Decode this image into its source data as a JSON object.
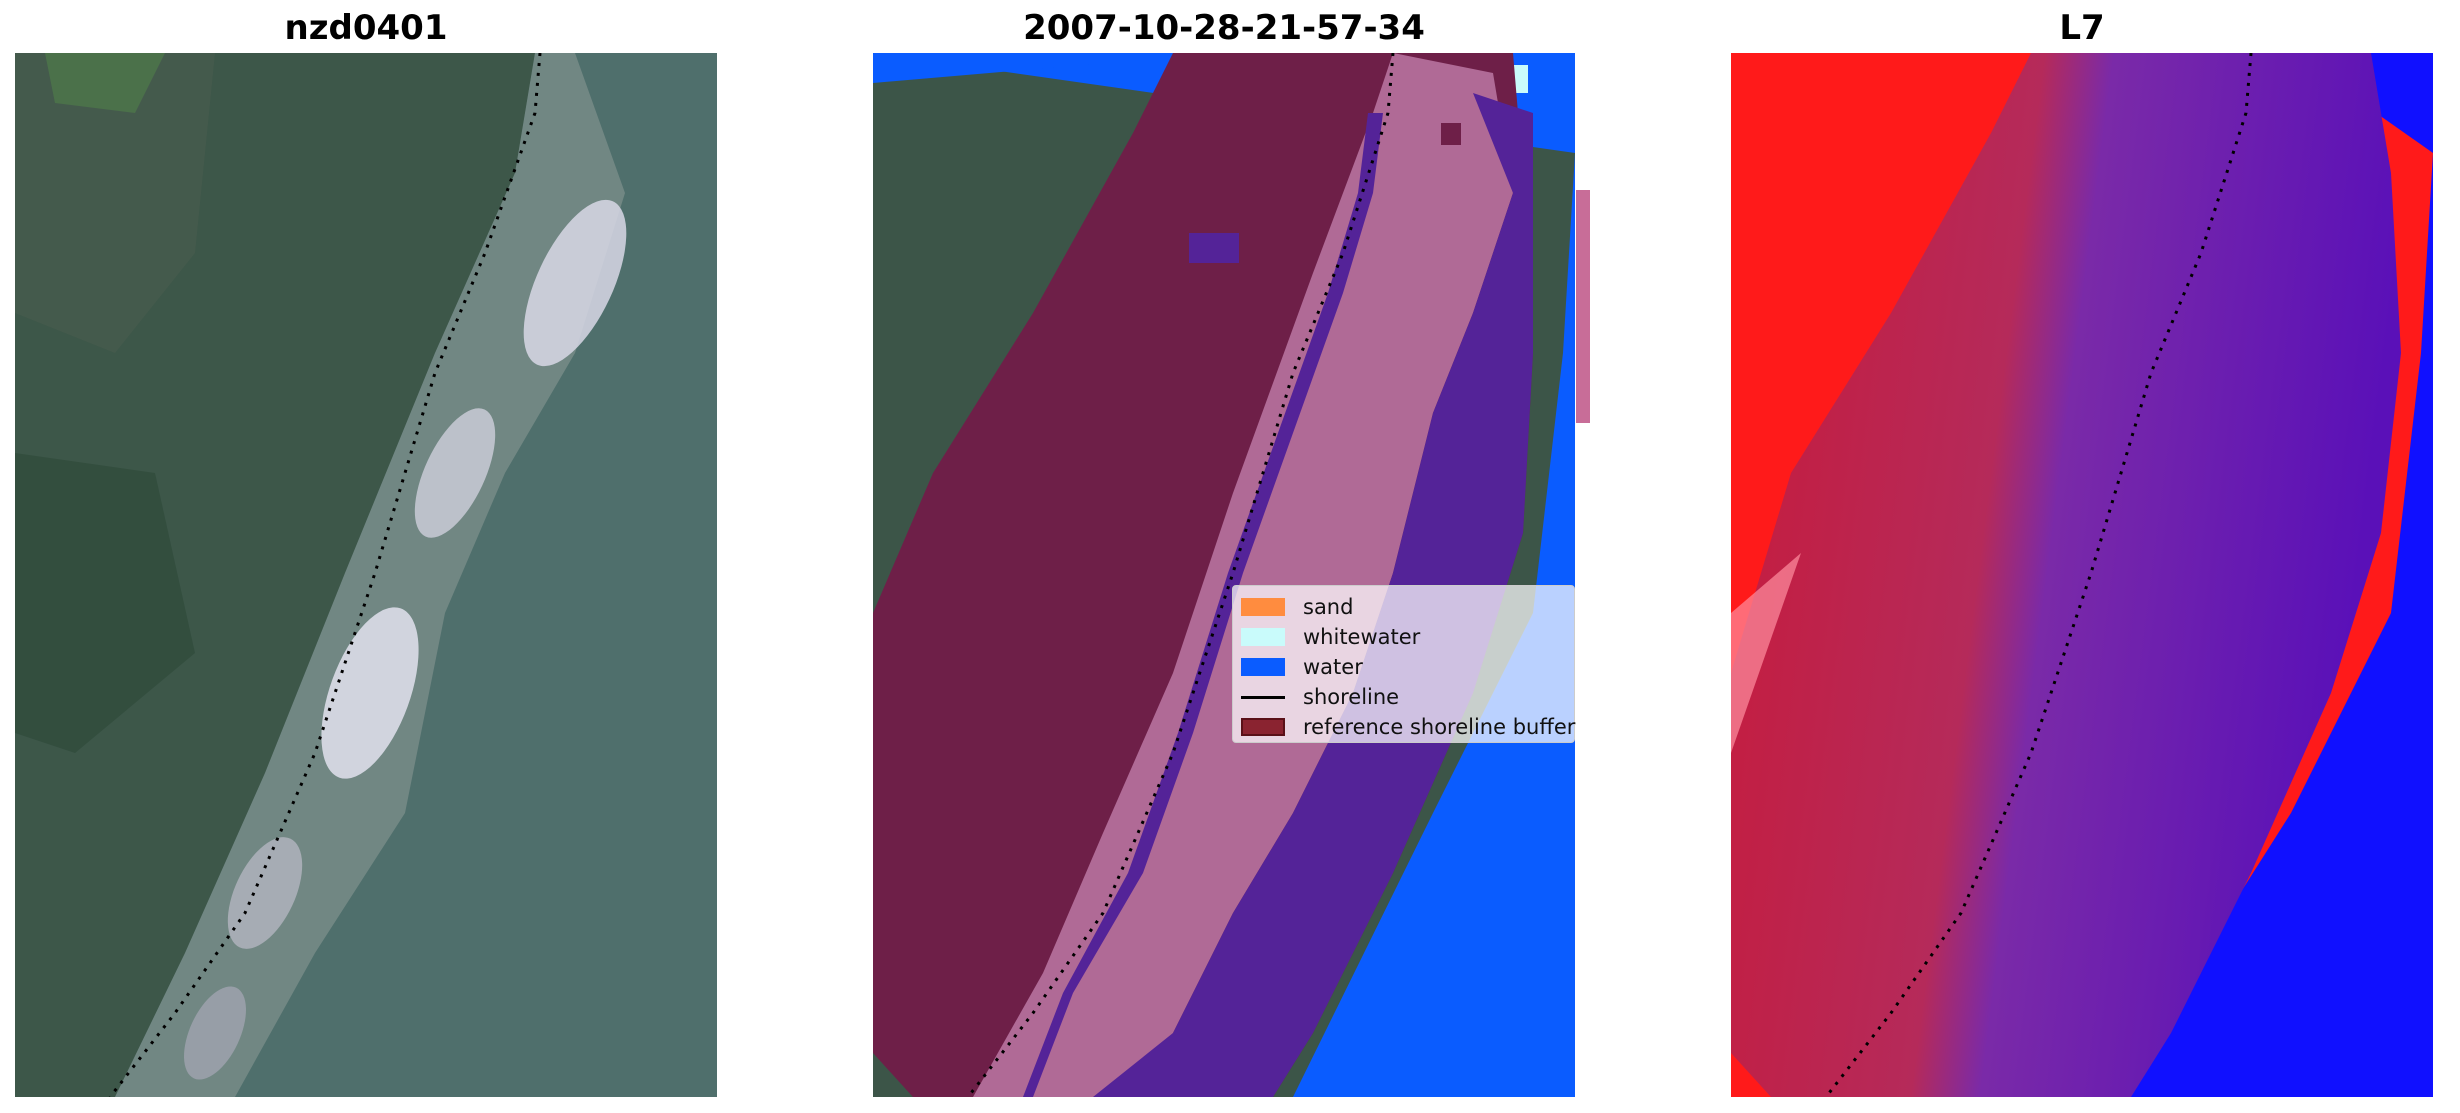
{
  "panels": [
    {
      "title": "nzd0401"
    },
    {
      "title": "2007-10-28-21-57-34"
    },
    {
      "title": "L7"
    }
  ],
  "legend": {
    "items": [
      {
        "label": "sand",
        "color": "#ff8c3f",
        "kind": "patch"
      },
      {
        "label": "whitewater",
        "color": "#c9fbfb",
        "kind": "patch"
      },
      {
        "label": "water",
        "color": "#0a5cff",
        "kind": "patch"
      },
      {
        "label": "shoreline",
        "color": "#000000",
        "kind": "line"
      },
      {
        "label": "reference shoreline buffer",
        "color": "#8a2330",
        "kind": "patch",
        "edge": "#5a1018"
      }
    ]
  },
  "colors": {
    "vegetation": "#3c5548",
    "sea_rgb": "#4f6f6c",
    "buffer_land": "#6e1f48",
    "buffer_sand": "#b06a96",
    "buffer_water": "#542398",
    "water_class": "#0a5cff",
    "l7_land": "#ff1a1a",
    "l7_buffer_land": "#c81a3a",
    "l7_buffer_water": "#6a1aa8",
    "l7_water": "#1010ff"
  }
}
